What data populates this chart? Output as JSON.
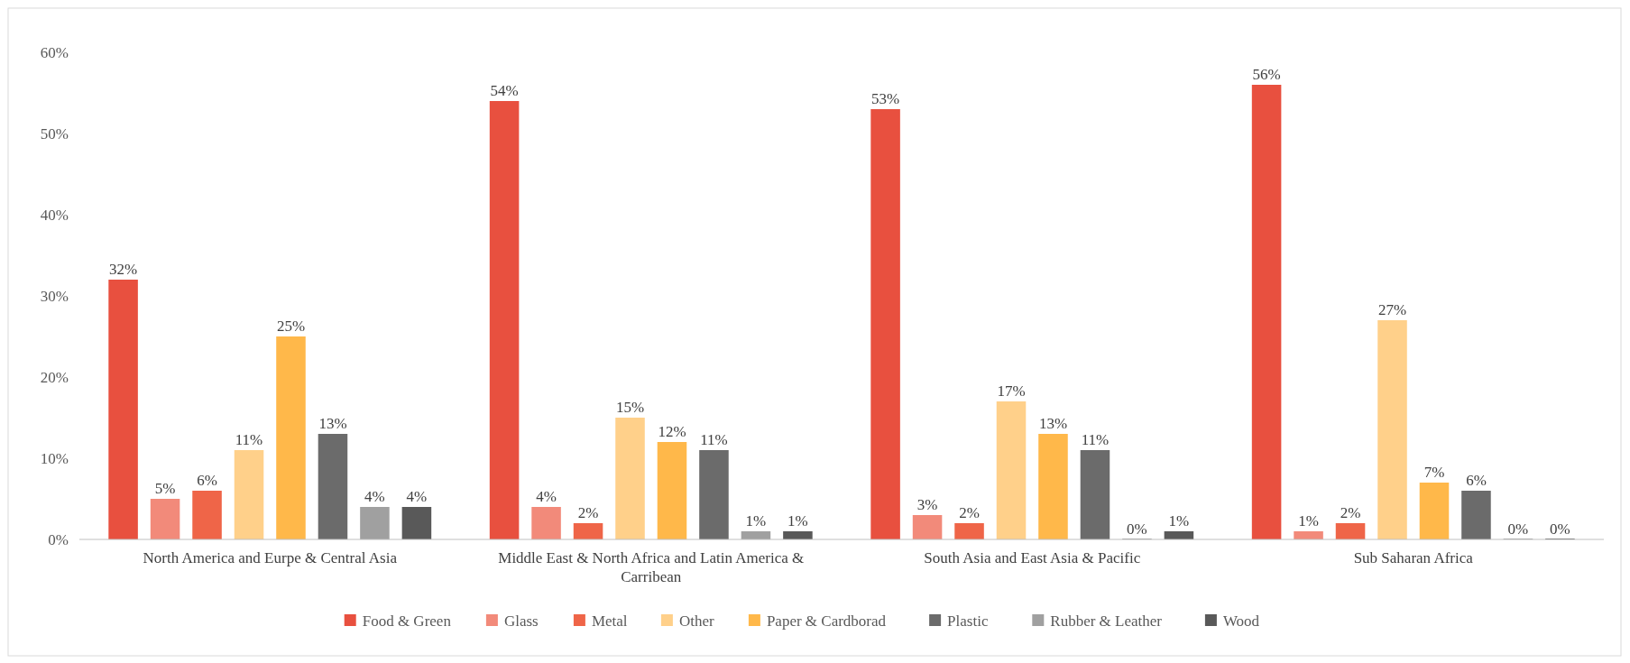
{
  "chart_data": {
    "type": "bar",
    "categories": [
      "North America and Eurpe & Central Asia",
      "Middle East & North Africa and Latin America & Carribean",
      "South Asia and East Asia & Pacific",
      "Sub Saharan Africa"
    ],
    "series": [
      {
        "name": "Food & Green",
        "color": "#e8503f",
        "values": [
          32,
          54,
          53,
          56
        ],
        "value_labels": [
          "32%",
          "54%",
          "53%",
          "56%"
        ]
      },
      {
        "name": "Glass",
        "color": "#f28a7a",
        "values": [
          5,
          4,
          3,
          1
        ],
        "value_labels": [
          "5%",
          "4%",
          "3%",
          "1%"
        ]
      },
      {
        "name": "Metal",
        "color": "#ef6548",
        "values": [
          6,
          2,
          2,
          2
        ],
        "value_labels": [
          "6%",
          "2%",
          "2%",
          "2%"
        ]
      },
      {
        "name": "Other",
        "color": "#ffd08a",
        "values": [
          11,
          15,
          17,
          27
        ],
        "value_labels": [
          "11%",
          "15%",
          "17%",
          "27%"
        ]
      },
      {
        "name": "Paper & Cardborad",
        "color": "#ffb84a",
        "values": [
          25,
          12,
          13,
          7
        ],
        "value_labels": [
          "25%",
          "12%",
          "13%",
          "7%"
        ]
      },
      {
        "name": "Plastic",
        "color": "#6b6b6b",
        "values": [
          13,
          11,
          11,
          6
        ],
        "value_labels": [
          "13%",
          "11%",
          "11%",
          "6%"
        ]
      },
      {
        "name": "Rubber & Leather",
        "color": "#a0a0a0",
        "values": [
          4,
          1,
          0,
          0
        ],
        "value_labels": [
          "4%",
          "1%",
          "0%",
          "0%"
        ]
      },
      {
        "name": "Wood",
        "color": "#595959",
        "values": [
          4,
          1,
          1,
          0
        ],
        "value_labels": [
          "4%",
          "1%",
          "1%",
          "0%"
        ]
      }
    ],
    "ylim": [
      0,
      60
    ],
    "yticks": [
      {
        "value": 0,
        "label": "0%"
      },
      {
        "value": 10,
        "label": "10%"
      },
      {
        "value": 20,
        "label": "20%"
      },
      {
        "value": 30,
        "label": "30%"
      },
      {
        "value": 40,
        "label": "40%"
      },
      {
        "value": 50,
        "label": "50%"
      },
      {
        "value": 60,
        "label": "60%"
      }
    ],
    "grid": false,
    "legend": "bottom"
  }
}
